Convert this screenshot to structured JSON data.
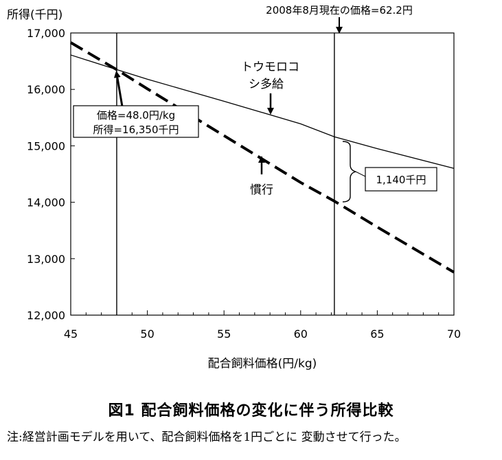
{
  "chart_data": {
    "type": "line",
    "ylabel": "所得(千円)",
    "xlabel": "配合飼料価格(円/kg)",
    "xlim": [
      45,
      70
    ],
    "ylim": [
      12000,
      17000
    ],
    "x_ticks": [
      45,
      50,
      55,
      60,
      65,
      70
    ],
    "y_ticks": [
      12000,
      13000,
      14000,
      15000,
      16000,
      17000
    ],
    "x_tick_labels": [
      "45",
      "50",
      "55",
      "60",
      "65",
      "70"
    ],
    "y_tick_labels": [
      "12,000",
      "13,000",
      "14,000",
      "15,000",
      "16,000",
      "17,000"
    ],
    "grid": false,
    "series": [
      {
        "name": "トウモロコシ多給",
        "style": "solid",
        "x": [
          45,
          48,
          50,
          55,
          60,
          62.2,
          65,
          70
        ],
        "y": [
          16610,
          16350,
          16180,
          15790,
          15390,
          15160,
          14950,
          14600
        ]
      },
      {
        "name": "慣行",
        "style": "dashed",
        "x": [
          45,
          48,
          50,
          55,
          60,
          62.2,
          65,
          70
        ],
        "y": [
          16830,
          16350,
          16010,
          15180,
          14350,
          14020,
          13560,
          12760
        ]
      }
    ],
    "vlines": [
      48,
      62.2
    ],
    "annotations": {
      "current_price": "2008年8月現在の価格=62.2円",
      "point_price": "価格=48.0円/kg",
      "point_income": "所得=16,350千円",
      "series1_label_line1": "トウモロコ",
      "series1_label_line2": "シ多給",
      "series2_label": "慣行",
      "difference": "1,140千円"
    }
  },
  "figure": {
    "title": "図1 配合飼料価格の変化に伴う所得比較",
    "note": "注:経営計画モデルを用いて、配合飼料価格を1円ごとに 変動させて行った。"
  }
}
